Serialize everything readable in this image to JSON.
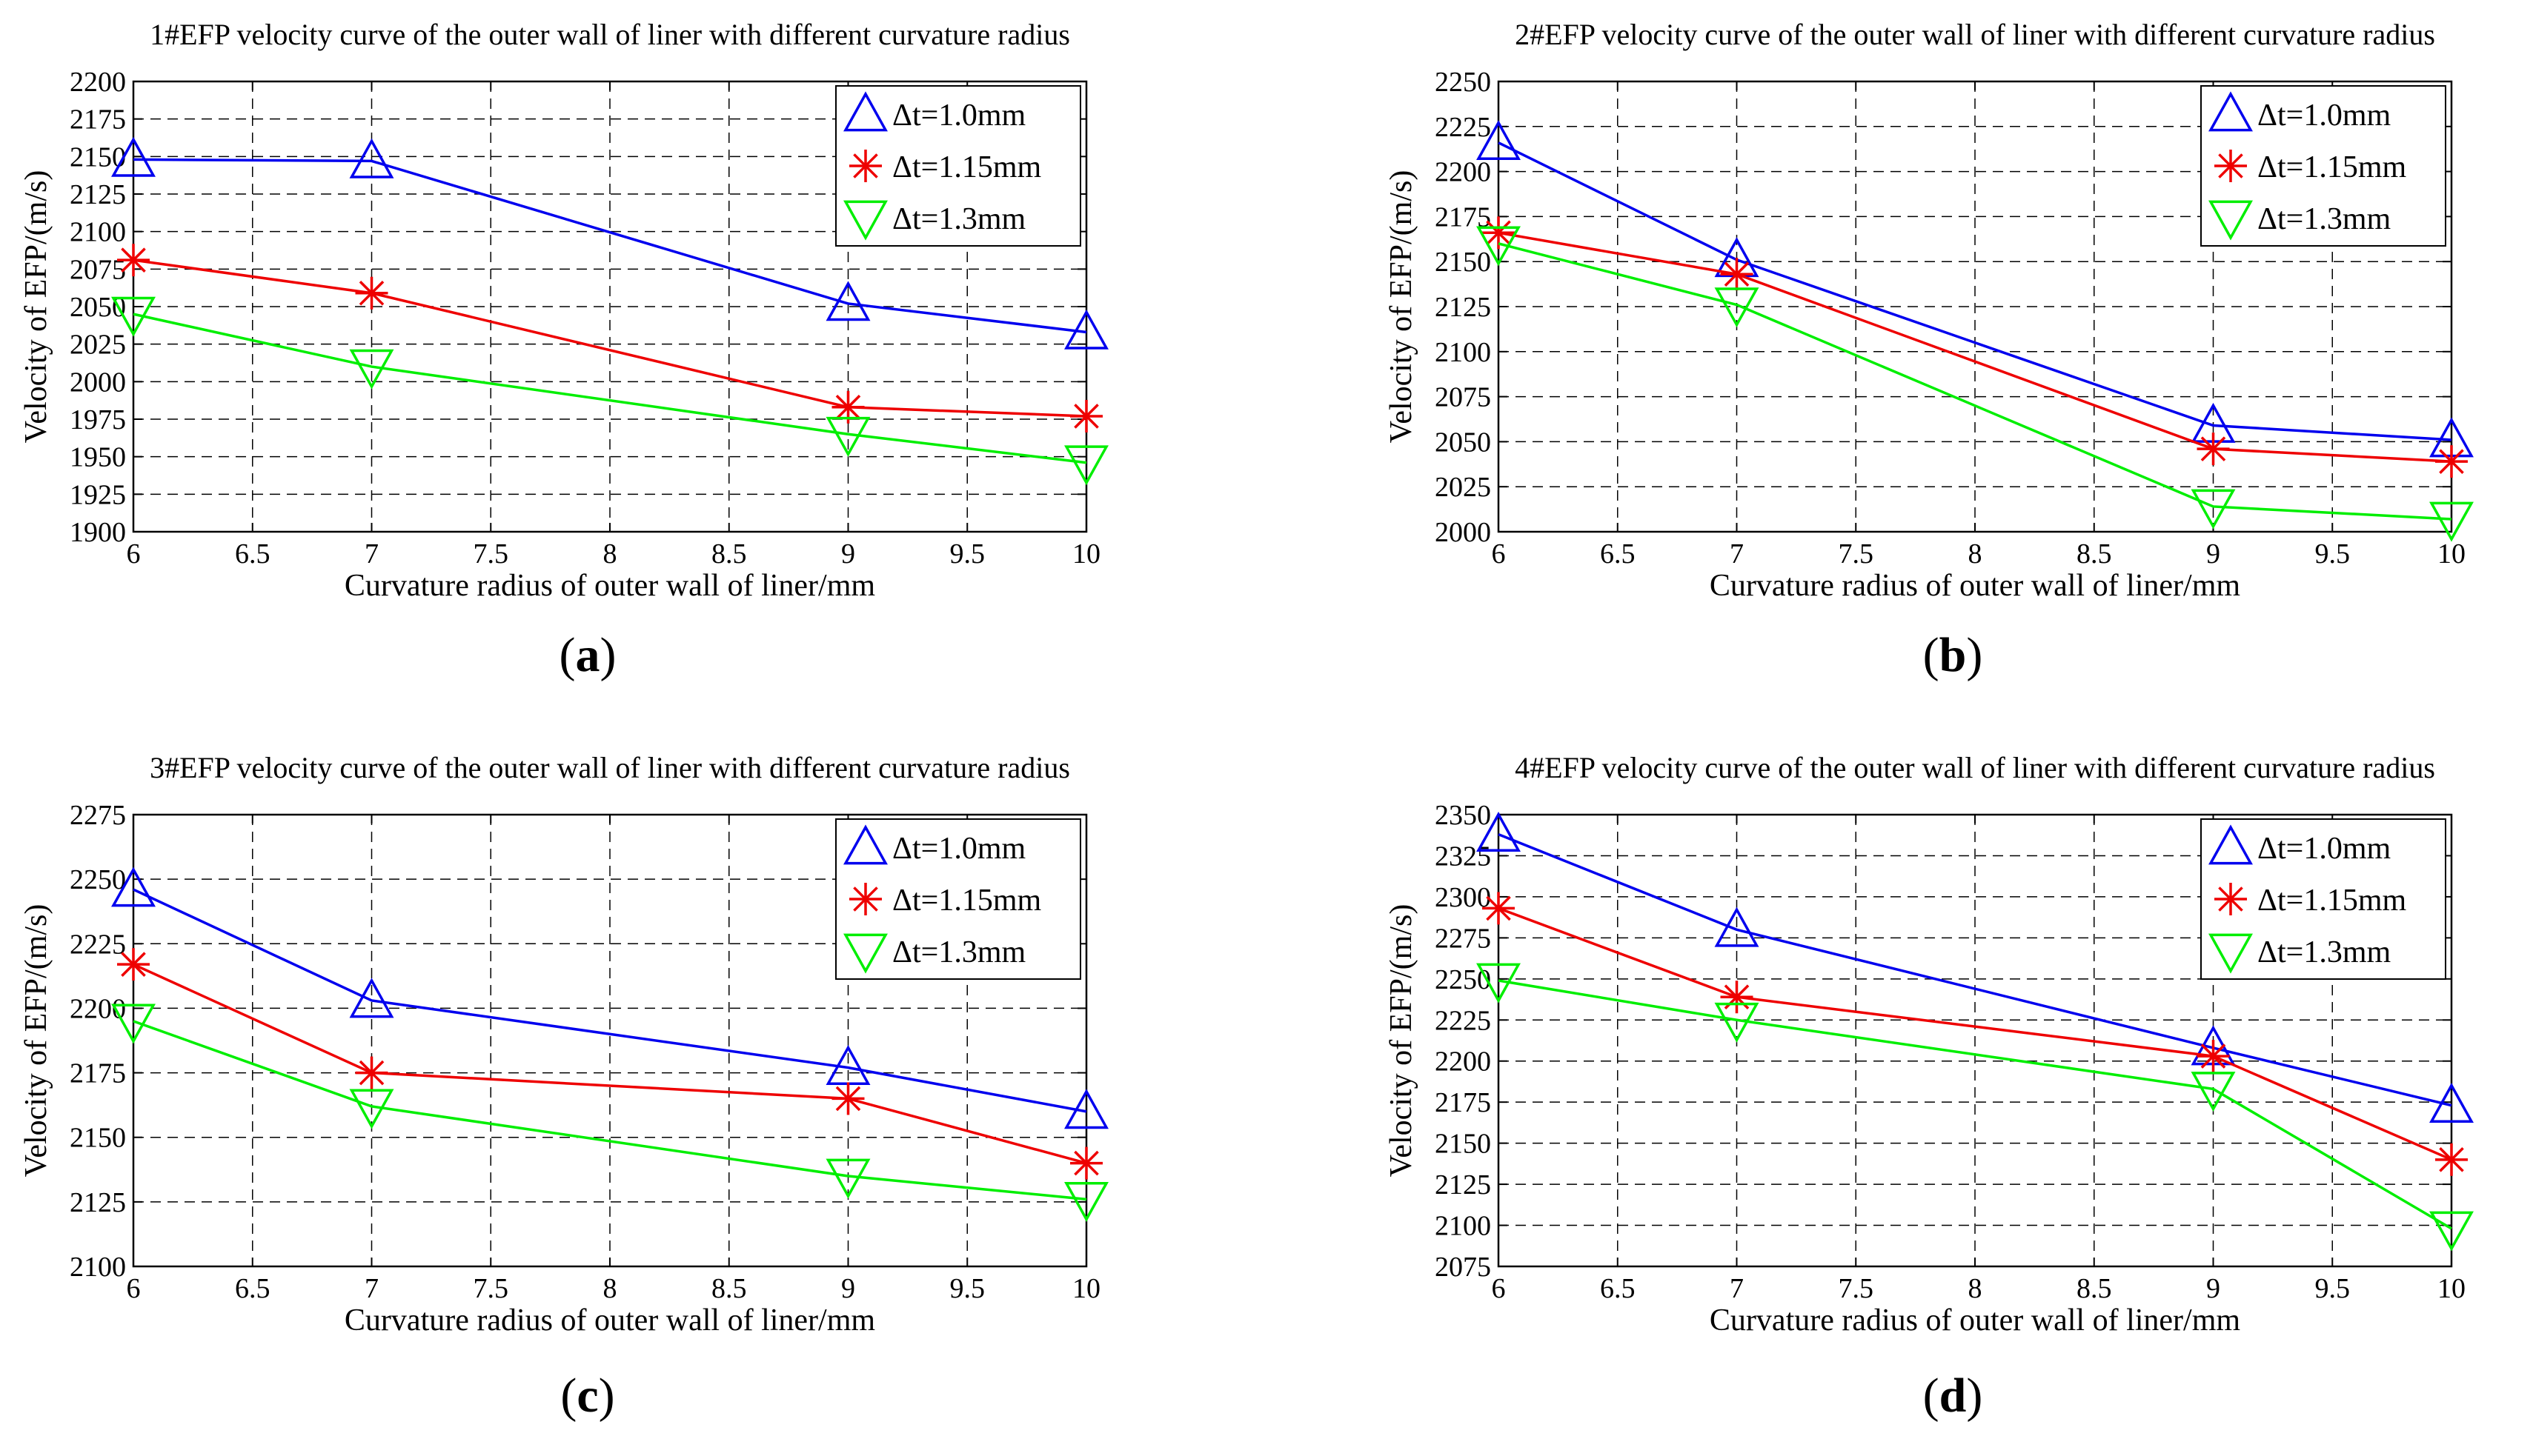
{
  "panels": [
    {
      "label_open": "(",
      "label_letter": "a",
      "label_close": ")",
      "chart_data": {
        "type": "line",
        "title": "1#EFP velocity curve of the outer wall of liner with different curvature radius",
        "xlabel": "Curvature radius of outer wall of liner/mm",
        "ylabel": "Velocity of EFP/(m/s)",
        "xlim": [
          6,
          10
        ],
        "ylim": [
          1900,
          2200
        ],
        "xticks": [
          "6",
          "6.5",
          "7",
          "7.5",
          "8",
          "8.5",
          "9",
          "9.5",
          "10"
        ],
        "yticks": [
          "1900",
          "1925",
          "1950",
          "1975",
          "2000",
          "2025",
          "2050",
          "2075",
          "2100",
          "2125",
          "2150",
          "2175",
          "2200"
        ],
        "grid": true,
        "legend_position": "top-right",
        "x": [
          6,
          7,
          9,
          10
        ],
        "series": [
          {
            "name": "Δt=1.0mm",
            "color": "#0000ee",
            "marker": "triangle-up",
            "values": [
              2148,
              2147,
              2052,
              2033
            ]
          },
          {
            "name": "Δt=1.15mm",
            "color": "#ee0000",
            "marker": "asterisk",
            "values": [
              2081,
              2059,
              1983,
              1977
            ]
          },
          {
            "name": "Δt=1.3mm",
            "color": "#00ee00",
            "marker": "triangle-down",
            "values": [
              2045,
              2010,
              1965,
              1946
            ]
          }
        ]
      }
    },
    {
      "label_open": "(",
      "label_letter": "b",
      "label_close": ")",
      "chart_data": {
        "type": "line",
        "title": "2#EFP velocity curve of the outer wall of liner with different curvature radius",
        "xlabel": "Curvature radius of outer wall of liner/mm",
        "ylabel": "Velocity of EFP/(m/s)",
        "xlim": [
          6,
          10
        ],
        "ylim": [
          2000,
          2250
        ],
        "xticks": [
          "6",
          "6.5",
          "7",
          "7.5",
          "8",
          "8.5",
          "9",
          "9.5",
          "10"
        ],
        "yticks": [
          "2000",
          "2025",
          "2050",
          "2075",
          "2100",
          "2125",
          "2150",
          "2175",
          "2200",
          "2225",
          "2250"
        ],
        "grid": true,
        "legend_position": "top-right",
        "x": [
          6,
          7,
          9,
          10
        ],
        "series": [
          {
            "name": "Δt=1.0mm",
            "color": "#0000ee",
            "marker": "triangle-up",
            "values": [
              2216,
              2151,
              2059,
              2051
            ]
          },
          {
            "name": "Δt=1.15mm",
            "color": "#ee0000",
            "marker": "asterisk",
            "values": [
              2166,
              2143,
              2046,
              2039
            ]
          },
          {
            "name": "Δt=1.3mm",
            "color": "#00ee00",
            "marker": "triangle-down",
            "values": [
              2160,
              2126,
              2014,
              2007
            ]
          }
        ]
      }
    },
    {
      "label_open": "(",
      "label_letter": "c",
      "label_close": ")",
      "chart_data": {
        "type": "line",
        "title": "3#EFP velocity curve of the outer wall of liner with different curvature radius",
        "xlabel": "Curvature radius of outer wall of liner/mm",
        "ylabel": "Velocity of EFP/(m/s)",
        "xlim": [
          6,
          10
        ],
        "ylim": [
          2100,
          2275
        ],
        "xticks": [
          "6",
          "6.5",
          "7",
          "7.5",
          "8",
          "8.5",
          "9",
          "9.5",
          "10"
        ],
        "yticks": [
          "2100",
          "2125",
          "2150",
          "2175",
          "2200",
          "2225",
          "2250",
          "2275"
        ],
        "grid": true,
        "legend_position": "top-right",
        "x": [
          6,
          7,
          9,
          10
        ],
        "series": [
          {
            "name": "Δt=1.0mm",
            "color": "#0000ee",
            "marker": "triangle-up",
            "values": [
              2246,
              2203,
              2177,
              2160
            ]
          },
          {
            "name": "Δt=1.15mm",
            "color": "#ee0000",
            "marker": "asterisk",
            "values": [
              2217,
              2175,
              2165,
              2140
            ]
          },
          {
            "name": "Δt=1.3mm",
            "color": "#00ee00",
            "marker": "triangle-down",
            "values": [
              2195,
              2162,
              2135,
              2126
            ]
          }
        ]
      }
    },
    {
      "label_open": "(",
      "label_letter": "d",
      "label_close": ")",
      "chart_data": {
        "type": "line",
        "title": "4#EFP velocity curve of the outer wall of liner with different curvature radius",
        "xlabel": "Curvature radius of outer wall of liner/mm",
        "ylabel": "Velocity of EFP/(m/s)",
        "xlim": [
          6,
          10
        ],
        "ylim": [
          2075,
          2350
        ],
        "xticks": [
          "6",
          "6.5",
          "7",
          "7.5",
          "8",
          "8.5",
          "9",
          "9.5",
          "10"
        ],
        "yticks": [
          "2075",
          "2100",
          "2125",
          "2150",
          "2175",
          "2200",
          "2225",
          "2250",
          "2275",
          "2300",
          "2325",
          "2350"
        ],
        "grid": true,
        "legend_position": "top-right",
        "x": [
          6,
          7,
          9,
          10
        ],
        "series": [
          {
            "name": "Δt=1.0mm",
            "color": "#0000ee",
            "marker": "triangle-up",
            "values": [
              2338,
              2280,
              2208,
              2173
            ]
          },
          {
            "name": "Δt=1.15mm",
            "color": "#ee0000",
            "marker": "asterisk",
            "values": [
              2293,
              2239,
              2203,
              2140
            ]
          },
          {
            "name": "Δt=1.3mm",
            "color": "#00ee00",
            "marker": "triangle-down",
            "values": [
              2249,
              2225,
              2183,
              2098
            ]
          }
        ]
      }
    }
  ]
}
